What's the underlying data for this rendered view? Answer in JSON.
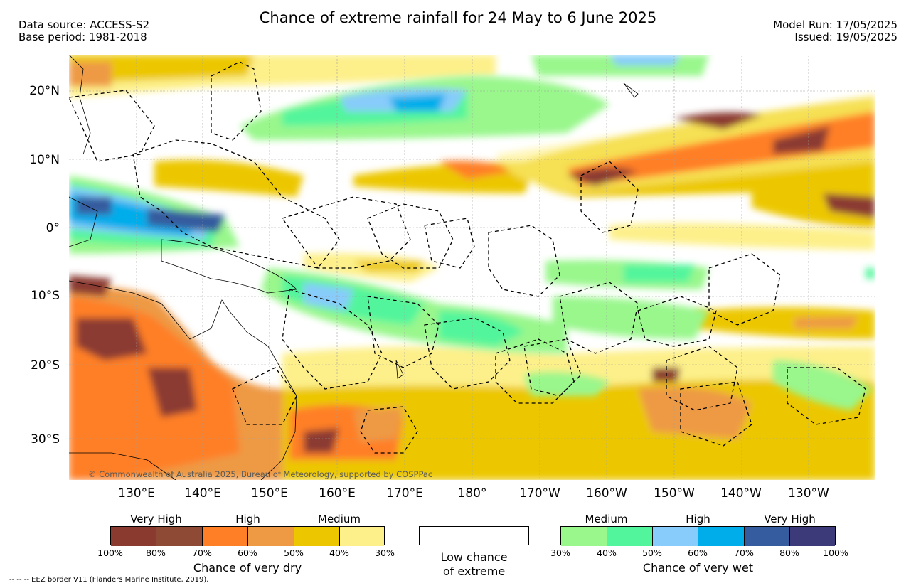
{
  "title": "Chance of extreme rainfall for 24 May to 6 June 2025",
  "header_left": {
    "line1": "Data source: ACCESS-S2",
    "line2": "Base period: 1981-2018"
  },
  "header_right": {
    "line1": "Model Run: 17/05/2025",
    "line2": "Issued: 19/05/2025"
  },
  "lat_labels": [
    "20°N",
    "10°N",
    "0°",
    "10°S",
    "20°S",
    "30°S"
  ],
  "lon_labels": [
    "130°E",
    "140°E",
    "150°E",
    "160°E",
    "170°E",
    "180°",
    "170°W",
    "160°W",
    "150°W",
    "140°W",
    "130°W"
  ],
  "copyright": "© Commonwealth of Australia 2025, Bureau of Meteorology, supported by COSPPac",
  "legend": {
    "dry": {
      "title": "Chance of very dry",
      "headers": [
        "Very High",
        "High",
        "Medium"
      ],
      "ticks": [
        "100%",
        "80%",
        "70%",
        "60%",
        "50%",
        "40%",
        "30%"
      ],
      "colors": [
        "#8b3a30",
        "#8f4a35",
        "#ff7f27",
        "#ee9a45",
        "#ecc700",
        "#fdf08a"
      ]
    },
    "low": {
      "line1": "Low chance",
      "line2": "of extreme"
    },
    "wet": {
      "title": "Chance of very wet",
      "headers": [
        "Medium",
        "High",
        "Very High"
      ],
      "ticks": [
        "30%",
        "40%",
        "50%",
        "60%",
        "70%",
        "80%",
        "100%"
      ],
      "colors": [
        "#99f78c",
        "#52f59c",
        "#87ccfa",
        "#00adeb",
        "#345c9e",
        "#3d3a7a"
      ]
    }
  },
  "footer": "-- -- -- EEZ border V11 (Flanders Marine Institute, 2019)."
}
